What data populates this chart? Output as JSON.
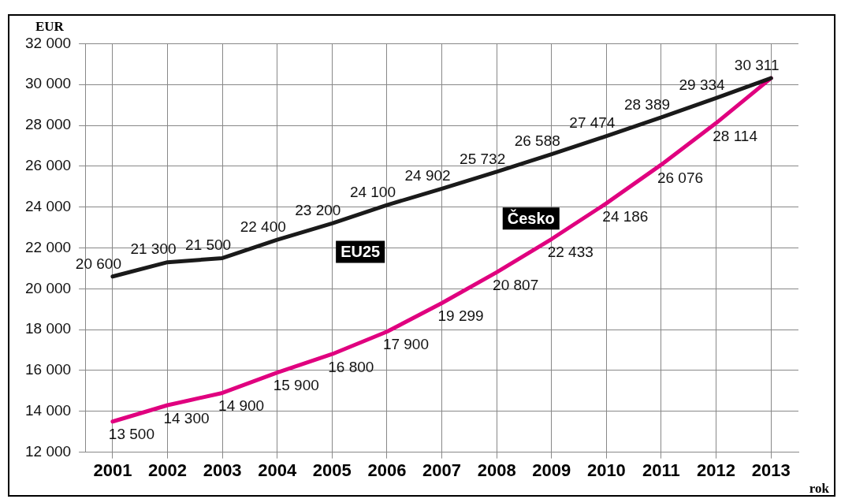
{
  "chart_data": {
    "type": "line",
    "ylabel": "EUR",
    "xlabel": "rok",
    "categories": [
      "2001",
      "2002",
      "2003",
      "2004",
      "2005",
      "2006",
      "2007",
      "2008",
      "2009",
      "2010",
      "2011",
      "2012",
      "2013"
    ],
    "series": [
      {
        "name": "EU25",
        "color": "#1a1a1a",
        "values": [
          20600,
          21300,
          21500,
          22400,
          23200,
          24100,
          24902,
          25732,
          26588,
          27474,
          28389,
          29334,
          30311
        ],
        "value_labels": [
          "20 600",
          "21 300",
          "21 500",
          "22 400",
          "23 200",
          "24 100",
          "24 902",
          "25 732",
          "26 588",
          "27 474",
          "28 389",
          "29 334",
          "30 311"
        ]
      },
      {
        "name": "Česko",
        "color": "#e0007f",
        "values": [
          13500,
          14300,
          14900,
          15900,
          16800,
          17900,
          19299,
          20807,
          22433,
          24186,
          26076,
          28114,
          30311
        ],
        "value_labels": [
          "13 500",
          "14 300",
          "14 900",
          "15 900",
          "16 800",
          "17 900",
          "19 299",
          "20 807",
          "22 433",
          "24 186",
          "26 076",
          "28 114",
          null
        ]
      }
    ],
    "ylim": [
      12000,
      32000
    ],
    "yticks": [
      {
        "value": 12000,
        "label": "12 000"
      },
      {
        "value": 14000,
        "label": "14 000"
      },
      {
        "value": 16000,
        "label": "16 000"
      },
      {
        "value": 18000,
        "label": "18 000"
      },
      {
        "value": 20000,
        "label": "20 000"
      },
      {
        "value": 22000,
        "label": "22 000"
      },
      {
        "value": 24000,
        "label": "24 000"
      },
      {
        "value": 26000,
        "label": "26 000"
      },
      {
        "value": 28000,
        "label": "28 000"
      },
      {
        "value": 30000,
        "label": "30 000"
      },
      {
        "value": 32000,
        "label": "32 000"
      }
    ],
    "grid": true,
    "legend": false,
    "marker": "none",
    "line_style": "solid"
  }
}
